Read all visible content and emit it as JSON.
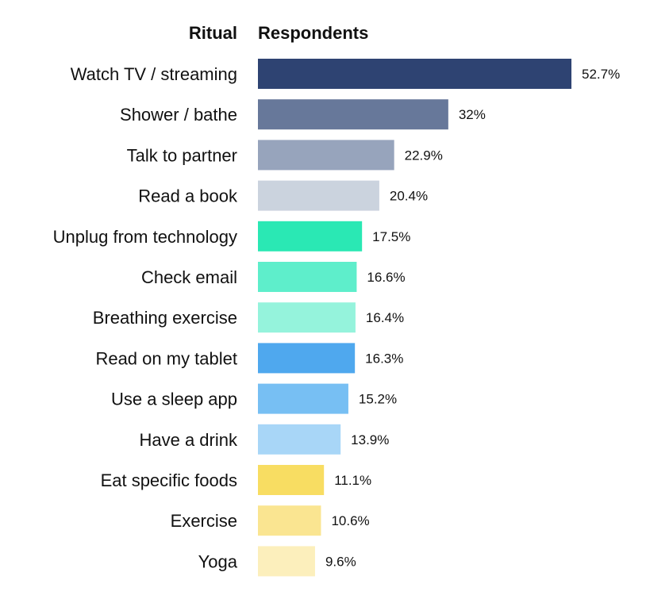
{
  "headers": {
    "category": "Ritual",
    "value": "Respondents"
  },
  "chart_data": {
    "type": "bar",
    "orientation": "horizontal",
    "title": "",
    "xlabel": "Respondents",
    "ylabel": "Ritual",
    "xlim": [
      0,
      52.7
    ],
    "grid": false,
    "legend": "none",
    "categories": [
      "Watch TV / streaming",
      "Shower / bathe",
      "Talk to partner",
      "Read a book",
      "Unplug from technology",
      "Check email",
      "Breathing exercise",
      "Read on my tablet",
      "Use a sleep app",
      "Have a drink",
      "Eat specific foods",
      "Exercise",
      "Yoga"
    ],
    "values": [
      52.7,
      32,
      22.9,
      20.4,
      17.5,
      16.6,
      16.4,
      16.3,
      15.2,
      13.9,
      11.1,
      10.6,
      9.6
    ],
    "value_labels": [
      "52.7%",
      "32%",
      "22.9%",
      "20.4%",
      "17.5%",
      "16.6%",
      "16.4%",
      "16.3%",
      "15.2%",
      "13.9%",
      "11.1%",
      "10.6%",
      "9.6%"
    ],
    "colors": [
      "#2e4372",
      "#67789a",
      "#97a4bc",
      "#cbd3de",
      "#2ae8b4",
      "#5eeecb",
      "#95f3dc",
      "#4fa8ee",
      "#77bff3",
      "#a8d6f7",
      "#f8dd62",
      "#fae591",
      "#fcefbc"
    ]
  }
}
